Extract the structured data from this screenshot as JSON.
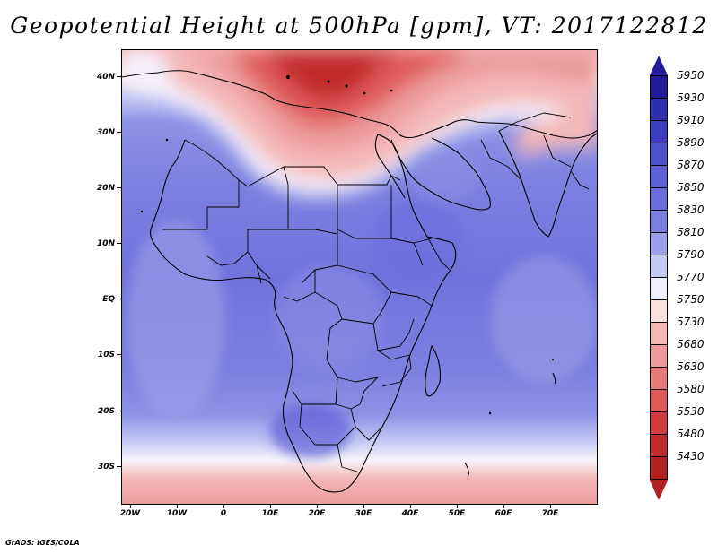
{
  "title": "Geopotential Height at 500hPa [gpm], VT: 2017122812",
  "credit": "GrADS: IGES/COLA",
  "axes": {
    "lat_labels": [
      "40N",
      "30N",
      "20N",
      "10N",
      "EQ",
      "10S",
      "20S",
      "30S"
    ],
    "lon_labels": [
      "20W",
      "10W",
      "0",
      "10E",
      "20E",
      "30E",
      "40E",
      "50E",
      "60E",
      "70E"
    ]
  },
  "colorbar": {
    "levels": [
      "5950",
      "5930",
      "5910",
      "5890",
      "5870",
      "5850",
      "5830",
      "5810",
      "5790",
      "5770",
      "5750",
      "5730",
      "5680",
      "5630",
      "5580",
      "5530",
      "5480",
      "5430"
    ],
    "colors": [
      "#241a9a",
      "#2e2eb0",
      "#3c3cc0",
      "#5050cc",
      "#5e60d6",
      "#6a6edc",
      "#7a80e0",
      "#9ca0ea",
      "#c6c8f4",
      "#eeeefc",
      "#fbe0e0",
      "#f4b8b8",
      "#ec9a9a",
      "#e47a7a",
      "#e05a5a",
      "#d23c3c",
      "#c22a2a",
      "#b02020"
    ],
    "over_color": "#241a9a",
    "under_color": "#b02020"
  },
  "field_colors": {
    "deep_blue": "#6a6edc",
    "mid_blue": "#7a80e0",
    "light_blue": "#9ca0ea",
    "pale_blue": "#c6c8f4",
    "white": "#f6f4fb",
    "pale_red": "#f4b8b8",
    "light_red": "#ec9a9a",
    "red": "#e05a5a",
    "dark_red": "#c22a2a",
    "coast": "#000000"
  }
}
